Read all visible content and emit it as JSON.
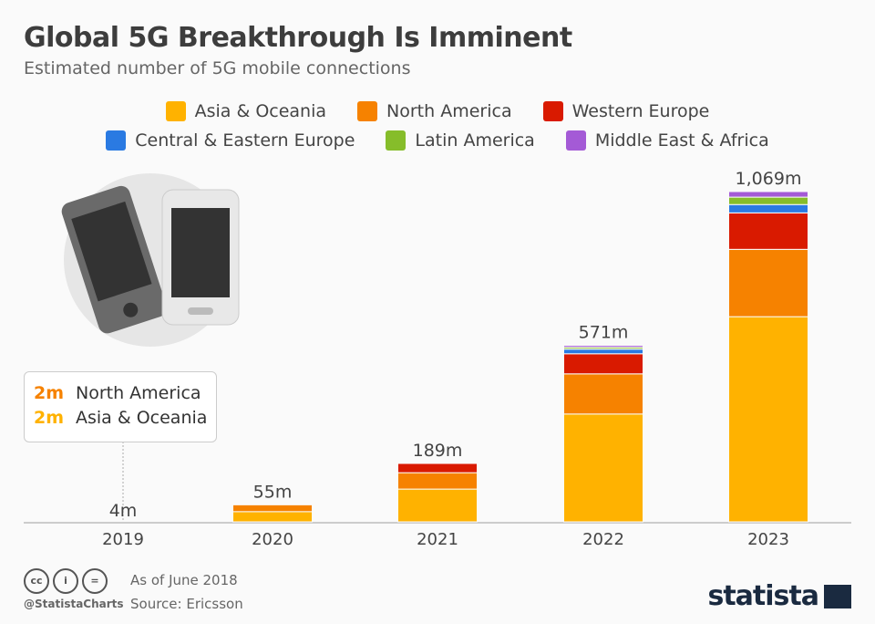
{
  "header": {
    "title": "Global 5G Breakthrough Is Imminent",
    "subtitle": "Estimated number of 5G mobile connections"
  },
  "colors": {
    "Asia & Oceania": "#ffb200",
    "North America": "#f68200",
    "Western Europe": "#d91a00",
    "Central & Eastern Europe": "#2a7ae2",
    "Latin America": "#86bd2a",
    "Middle East & Africa": "#a45ad6"
  },
  "callout": {
    "rows": [
      {
        "value": "2m",
        "label": "North America"
      },
      {
        "value": "2m",
        "label": "Asia & Oceania"
      }
    ]
  },
  "chart_data": {
    "type": "bar",
    "stacked": true,
    "title": "Global 5G Breakthrough Is Imminent",
    "categories": [
      "2019",
      "2020",
      "2021",
      "2022",
      "2023"
    ],
    "totals_labels": [
      "4m",
      "55m",
      "189m",
      "571m",
      "1,069m"
    ],
    "series": [
      {
        "name": "Asia & Oceania",
        "values": [
          2,
          33,
          106,
          349,
          664
        ]
      },
      {
        "name": "North America",
        "values": [
          2,
          22,
          53,
          130,
          218
        ]
      },
      {
        "name": "Western Europe",
        "values": [
          0,
          0,
          30,
          65,
          118
        ]
      },
      {
        "name": "Central & Eastern Europe",
        "values": [
          0,
          0,
          0,
          15,
          27
        ]
      },
      {
        "name": "Latin America",
        "values": [
          0,
          0,
          0,
          6,
          24
        ]
      },
      {
        "name": "Middle East & Africa",
        "values": [
          0,
          0,
          0,
          6,
          18
        ]
      }
    ],
    "ylim": [
      0,
      1069
    ],
    "grid": false,
    "legend": "top"
  },
  "footer": {
    "handle": "@StatistaCharts",
    "date": "As of June 2018",
    "source": "Source: Ericsson",
    "brand": "statista"
  }
}
